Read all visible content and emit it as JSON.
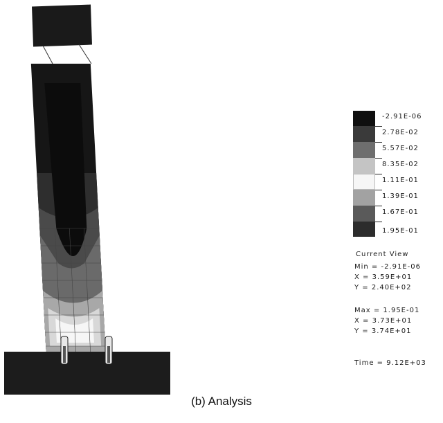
{
  "colors": {
    "dark": "#111111",
    "band1": "#2a2a2a",
    "band2": "#555555",
    "band3": "#9a9a9a",
    "band4": "#c4c4c4",
    "band5": "#f4f4f4",
    "band6": "#b0b0b0",
    "band7": "#6a6a6a",
    "band8": "#3a3a3a"
  },
  "legend": {
    "labels": [
      "-2.91E-06",
      "2.78E-02",
      "5.57E-02",
      "8.35E-02",
      "1.11E-01",
      "1.39E-01",
      "1.67E-01",
      "1.95E-01"
    ]
  },
  "info": {
    "current_view": "Current View",
    "min_line": "Min = -2.91E-06",
    "min_x": "X = 3.59E+01",
    "min_y": "Y = 2.40E+02",
    "max_line": "Max =  1.95E-01",
    "max_x": "X = 3.73E+01",
    "max_y": "Y = 3.74E+01",
    "time": "Time = 9.12E+03"
  },
  "caption": "(b)  Analysis"
}
